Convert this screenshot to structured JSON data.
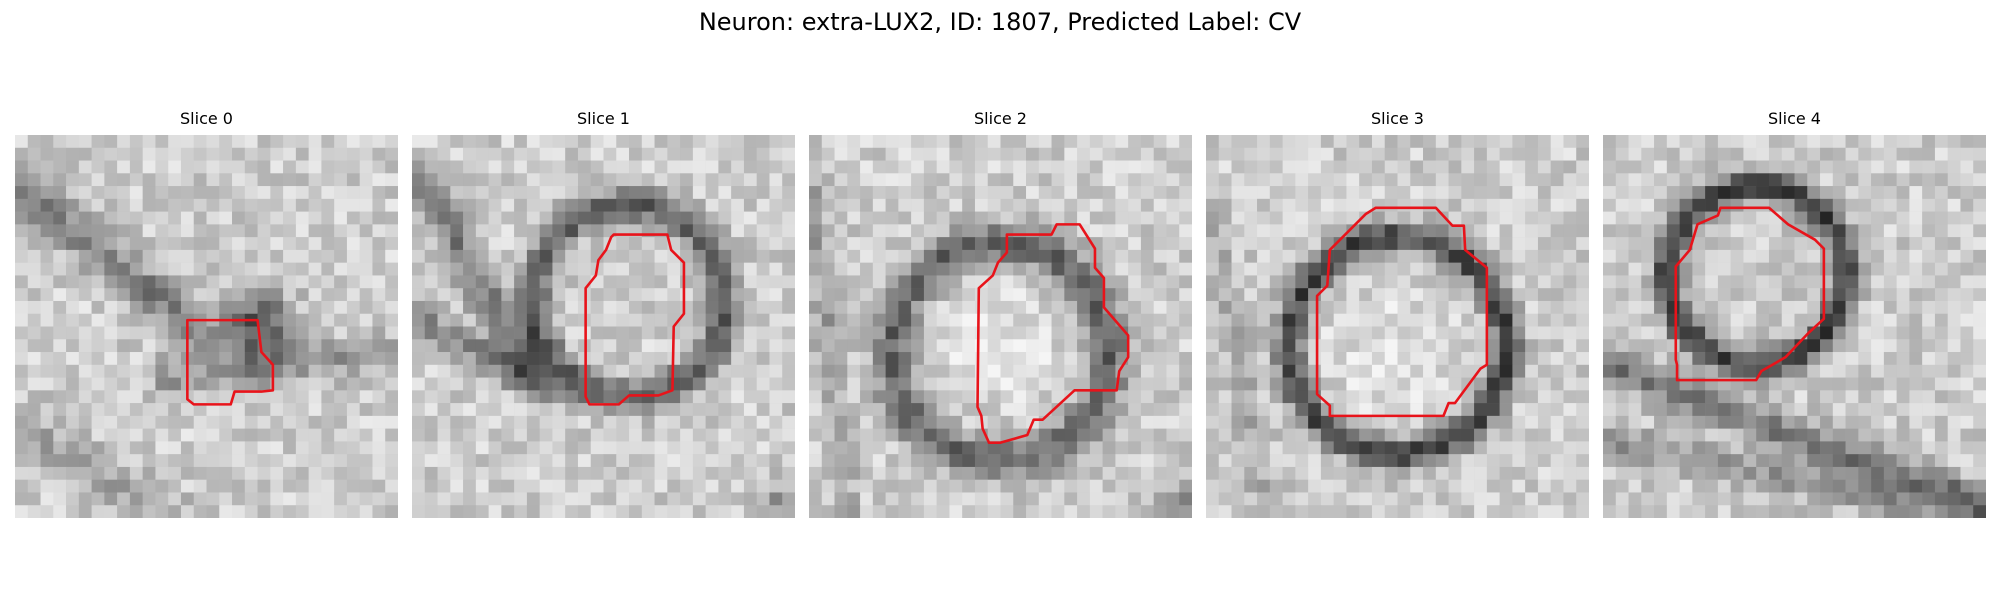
{
  "figure": {
    "title": "Neuron: extra-LUX2, ID: 1807, Predicted Label: CV"
  },
  "colors": {
    "contour": "#e8131a",
    "background": "#ffffff"
  },
  "panels": [
    {
      "title": "Slice 0"
    },
    {
      "title": "Slice 1"
    },
    {
      "title": "Slice 2"
    },
    {
      "title": "Slice 3"
    },
    {
      "title": "Slice 4"
    }
  ]
}
